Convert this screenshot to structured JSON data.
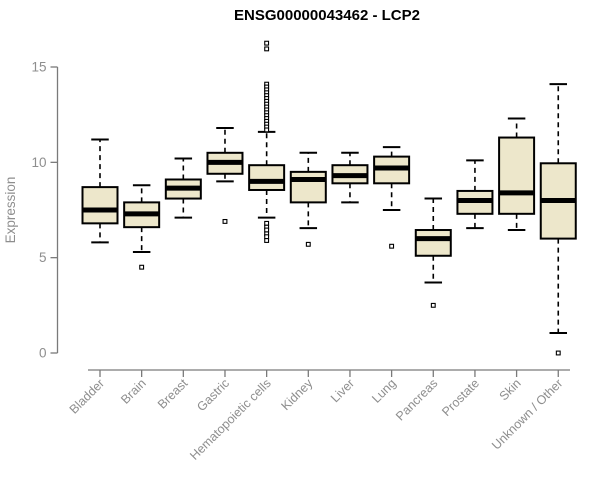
{
  "chart_data": {
    "type": "boxplot",
    "title": "ENSG00000043462 - LCP2",
    "ylabel": "Expression",
    "xlabel": "",
    "ylim": [
      0,
      15
    ],
    "yticks": [
      0,
      5,
      10,
      15
    ],
    "grid": false,
    "legend": null,
    "categories": [
      "Bladder",
      "Brain",
      "Breast",
      "Gastric",
      "Hematopoietic cells",
      "Kidney",
      "Liver",
      "Lung",
      "Pancreas",
      "Prostate",
      "Skin",
      "Unknown / Other"
    ],
    "boxes": [
      {
        "category": "Bladder",
        "whisker_low": 5.8,
        "q1": 6.8,
        "median": 7.5,
        "q3": 8.7,
        "whisker_high": 11.2,
        "outliers": []
      },
      {
        "category": "Brain",
        "whisker_low": 5.3,
        "q1": 6.6,
        "median": 7.3,
        "q3": 7.9,
        "whisker_high": 8.8,
        "outliers": [
          4.5
        ]
      },
      {
        "category": "Breast",
        "whisker_low": 7.1,
        "q1": 8.1,
        "median": 8.65,
        "q3": 9.1,
        "whisker_high": 10.2,
        "outliers": []
      },
      {
        "category": "Gastric",
        "whisker_low": 9.0,
        "q1": 9.4,
        "median": 10.0,
        "q3": 10.5,
        "whisker_high": 11.8,
        "outliers": [
          6.9
        ]
      },
      {
        "category": "Hematopoietic cells",
        "whisker_low": 7.1,
        "q1": 8.55,
        "median": 9.0,
        "q3": 9.85,
        "whisker_high": 11.6,
        "outliers": [
          16.25,
          15.95,
          14.1,
          13.95,
          13.8,
          13.65,
          13.5,
          13.35,
          13.2,
          13.05,
          12.9,
          12.75,
          12.6,
          12.45,
          12.3,
          12.15,
          12.0,
          11.85,
          11.7,
          6.8,
          6.6,
          6.45,
          6.25,
          6.1,
          5.9
        ]
      },
      {
        "category": "Kidney",
        "whisker_low": 6.55,
        "q1": 7.9,
        "median": 9.1,
        "q3": 9.5,
        "whisker_high": 10.5,
        "outliers": [
          5.7
        ]
      },
      {
        "category": "Liver",
        "whisker_low": 7.9,
        "q1": 8.9,
        "median": 9.3,
        "q3": 9.85,
        "whisker_high": 10.5,
        "outliers": []
      },
      {
        "category": "Lung",
        "whisker_low": 7.5,
        "q1": 8.9,
        "median": 9.7,
        "q3": 10.3,
        "whisker_high": 10.8,
        "outliers": [
          5.6
        ]
      },
      {
        "category": "Pancreas",
        "whisker_low": 3.7,
        "q1": 5.1,
        "median": 6.0,
        "q3": 6.45,
        "whisker_high": 8.1,
        "outliers": [
          2.5
        ]
      },
      {
        "category": "Prostate",
        "whisker_low": 6.55,
        "q1": 7.3,
        "median": 8.0,
        "q3": 8.5,
        "whisker_high": 10.1,
        "outliers": []
      },
      {
        "category": "Skin",
        "whisker_low": 6.45,
        "q1": 7.3,
        "median": 8.4,
        "q3": 11.3,
        "whisker_high": 12.3,
        "outliers": []
      },
      {
        "category": "Unknown / Other",
        "whisker_low": 1.05,
        "q1": 6.0,
        "median": 8.0,
        "q3": 9.95,
        "whisker_high": 14.1,
        "outliers": [
          0.0
        ]
      }
    ],
    "colors": {
      "box_fill": "#EDE7CB",
      "box_stroke": "#000000",
      "median": "#000000",
      "whisker": "#000000",
      "outlier_stroke": "#000000",
      "outlier_fill": "#ffffff",
      "axis": "#7a7a7a",
      "tick_label": "#8e8e8e",
      "title": "#000000",
      "background": "#ffffff"
    }
  }
}
